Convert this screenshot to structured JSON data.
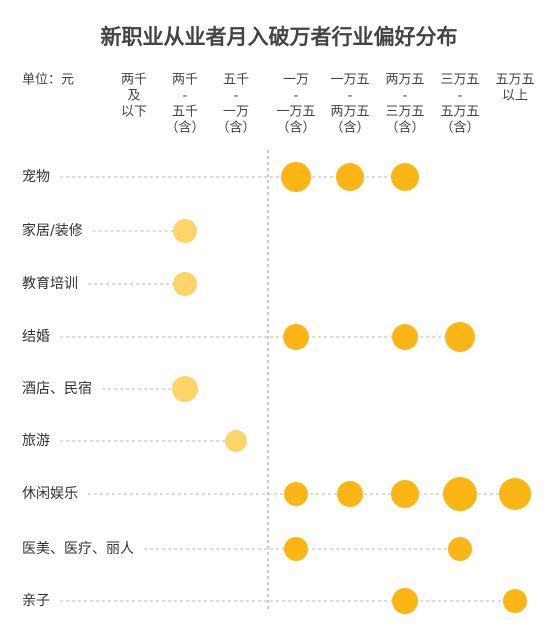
{
  "chart_data": {
    "type": "bubble-matrix",
    "title": "新职业从业者月入破万者行业偏好分布",
    "unit_label": "单位：元",
    "columns": [
      [
        "两千",
        "及",
        "以下"
      ],
      [
        "两千",
        "-",
        "五千",
        "（含）"
      ],
      [
        "五千",
        "-",
        "一万",
        "（含）"
      ],
      [
        "一万",
        "-",
        "一万五",
        "（含）"
      ],
      [
        "一万五",
        "-",
        "两万五",
        "（含）"
      ],
      [
        "两万五",
        "-",
        "三万五",
        "（含）"
      ],
      [
        "三万五",
        "-",
        "五万五",
        "（含）"
      ],
      [
        "五万五",
        "以上"
      ]
    ],
    "series": [
      {
        "name": "宠物",
        "color": "#fbb616",
        "values": [
          null,
          null,
          null,
          15,
          14,
          14,
          null,
          null
        ]
      },
      {
        "name": "家居/装修",
        "color": "#fdd468",
        "values": [
          null,
          12,
          null,
          null,
          null,
          null,
          null,
          null
        ]
      },
      {
        "name": "教育培训",
        "color": "#fdd468",
        "values": [
          null,
          12,
          null,
          null,
          null,
          null,
          null,
          null
        ]
      },
      {
        "name": "结婚",
        "color": "#fbb616",
        "values": [
          null,
          null,
          null,
          13,
          null,
          13,
          15,
          null
        ]
      },
      {
        "name": "酒店、民宿",
        "color": "#fdd468",
        "values": [
          null,
          13,
          null,
          null,
          null,
          null,
          null,
          null
        ]
      },
      {
        "name": "旅游",
        "color": "#fdd468",
        "values": [
          null,
          null,
          11,
          null,
          null,
          null,
          null,
          null
        ]
      },
      {
        "name": "休闲娱乐",
        "color": "#fbb616",
        "values": [
          null,
          null,
          null,
          12,
          13,
          14,
          17,
          16
        ]
      },
      {
        "name": "医美、医疗、丽人",
        "color": "#fbb616",
        "values": [
          null,
          null,
          null,
          12,
          null,
          null,
          12,
          null
        ]
      },
      {
        "name": "亲子",
        "color": "#fbb616",
        "values": [
          null,
          null,
          null,
          null,
          null,
          13,
          null,
          12
        ]
      }
    ]
  }
}
